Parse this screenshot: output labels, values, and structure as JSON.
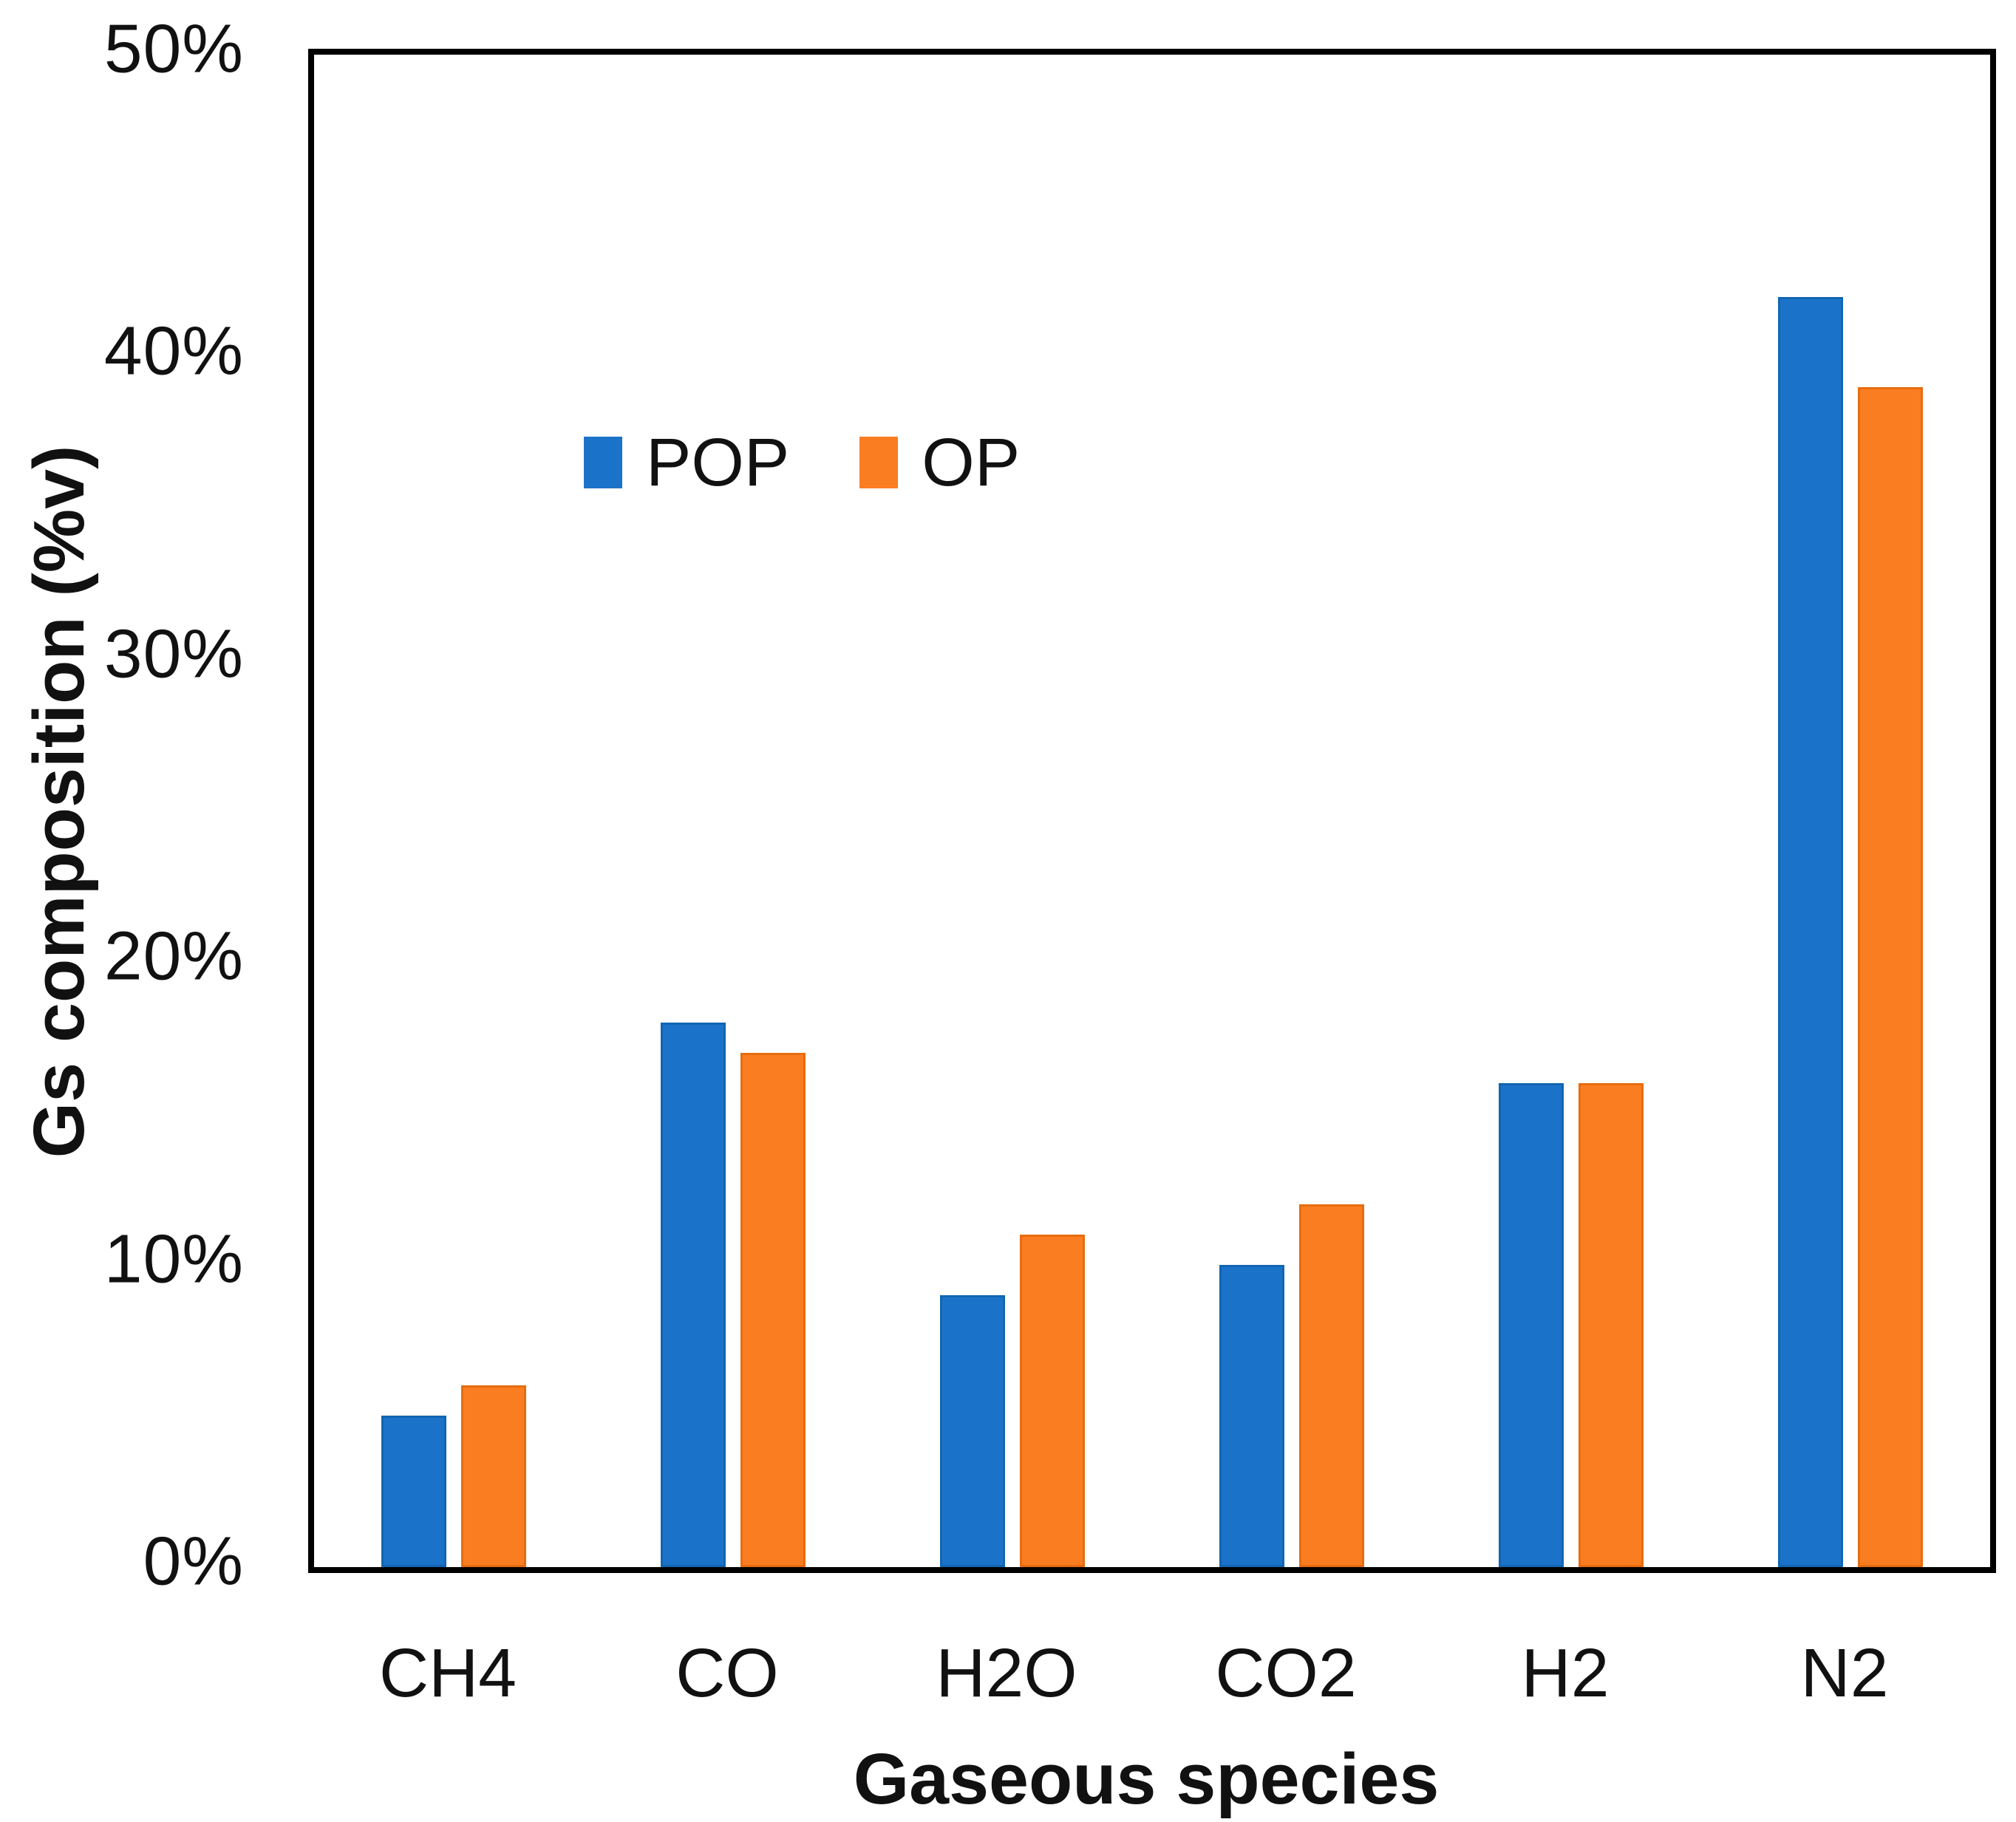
{
  "chart_data": {
    "type": "bar",
    "title": "",
    "xlabel": "Gaseous species",
    "ylabel": "Gs composition (%v)",
    "categories": [
      "CH4",
      "CO",
      "H2O",
      "CO2",
      "H2",
      "N2"
    ],
    "series": [
      {
        "name": "POP",
        "color": "#1B73C9",
        "edge_color": "#1265B2",
        "values": [
          5,
          18,
          9,
          10,
          16,
          42
        ]
      },
      {
        "name": "OP",
        "color": "#FA7D22",
        "edge_color": "#E76C0F",
        "values": [
          6,
          17,
          11,
          12,
          16,
          39
        ]
      }
    ],
    "value_unit": "%",
    "ylim": [
      0,
      50
    ],
    "ytick_labels": [
      "0%",
      "10%",
      "20%",
      "30%",
      "40%",
      "50%"
    ],
    "ytick_values": [
      0,
      10,
      20,
      30,
      40,
      50
    ],
    "grid": false,
    "legend_position": "top-left-inside",
    "axis_color": "#000000"
  }
}
